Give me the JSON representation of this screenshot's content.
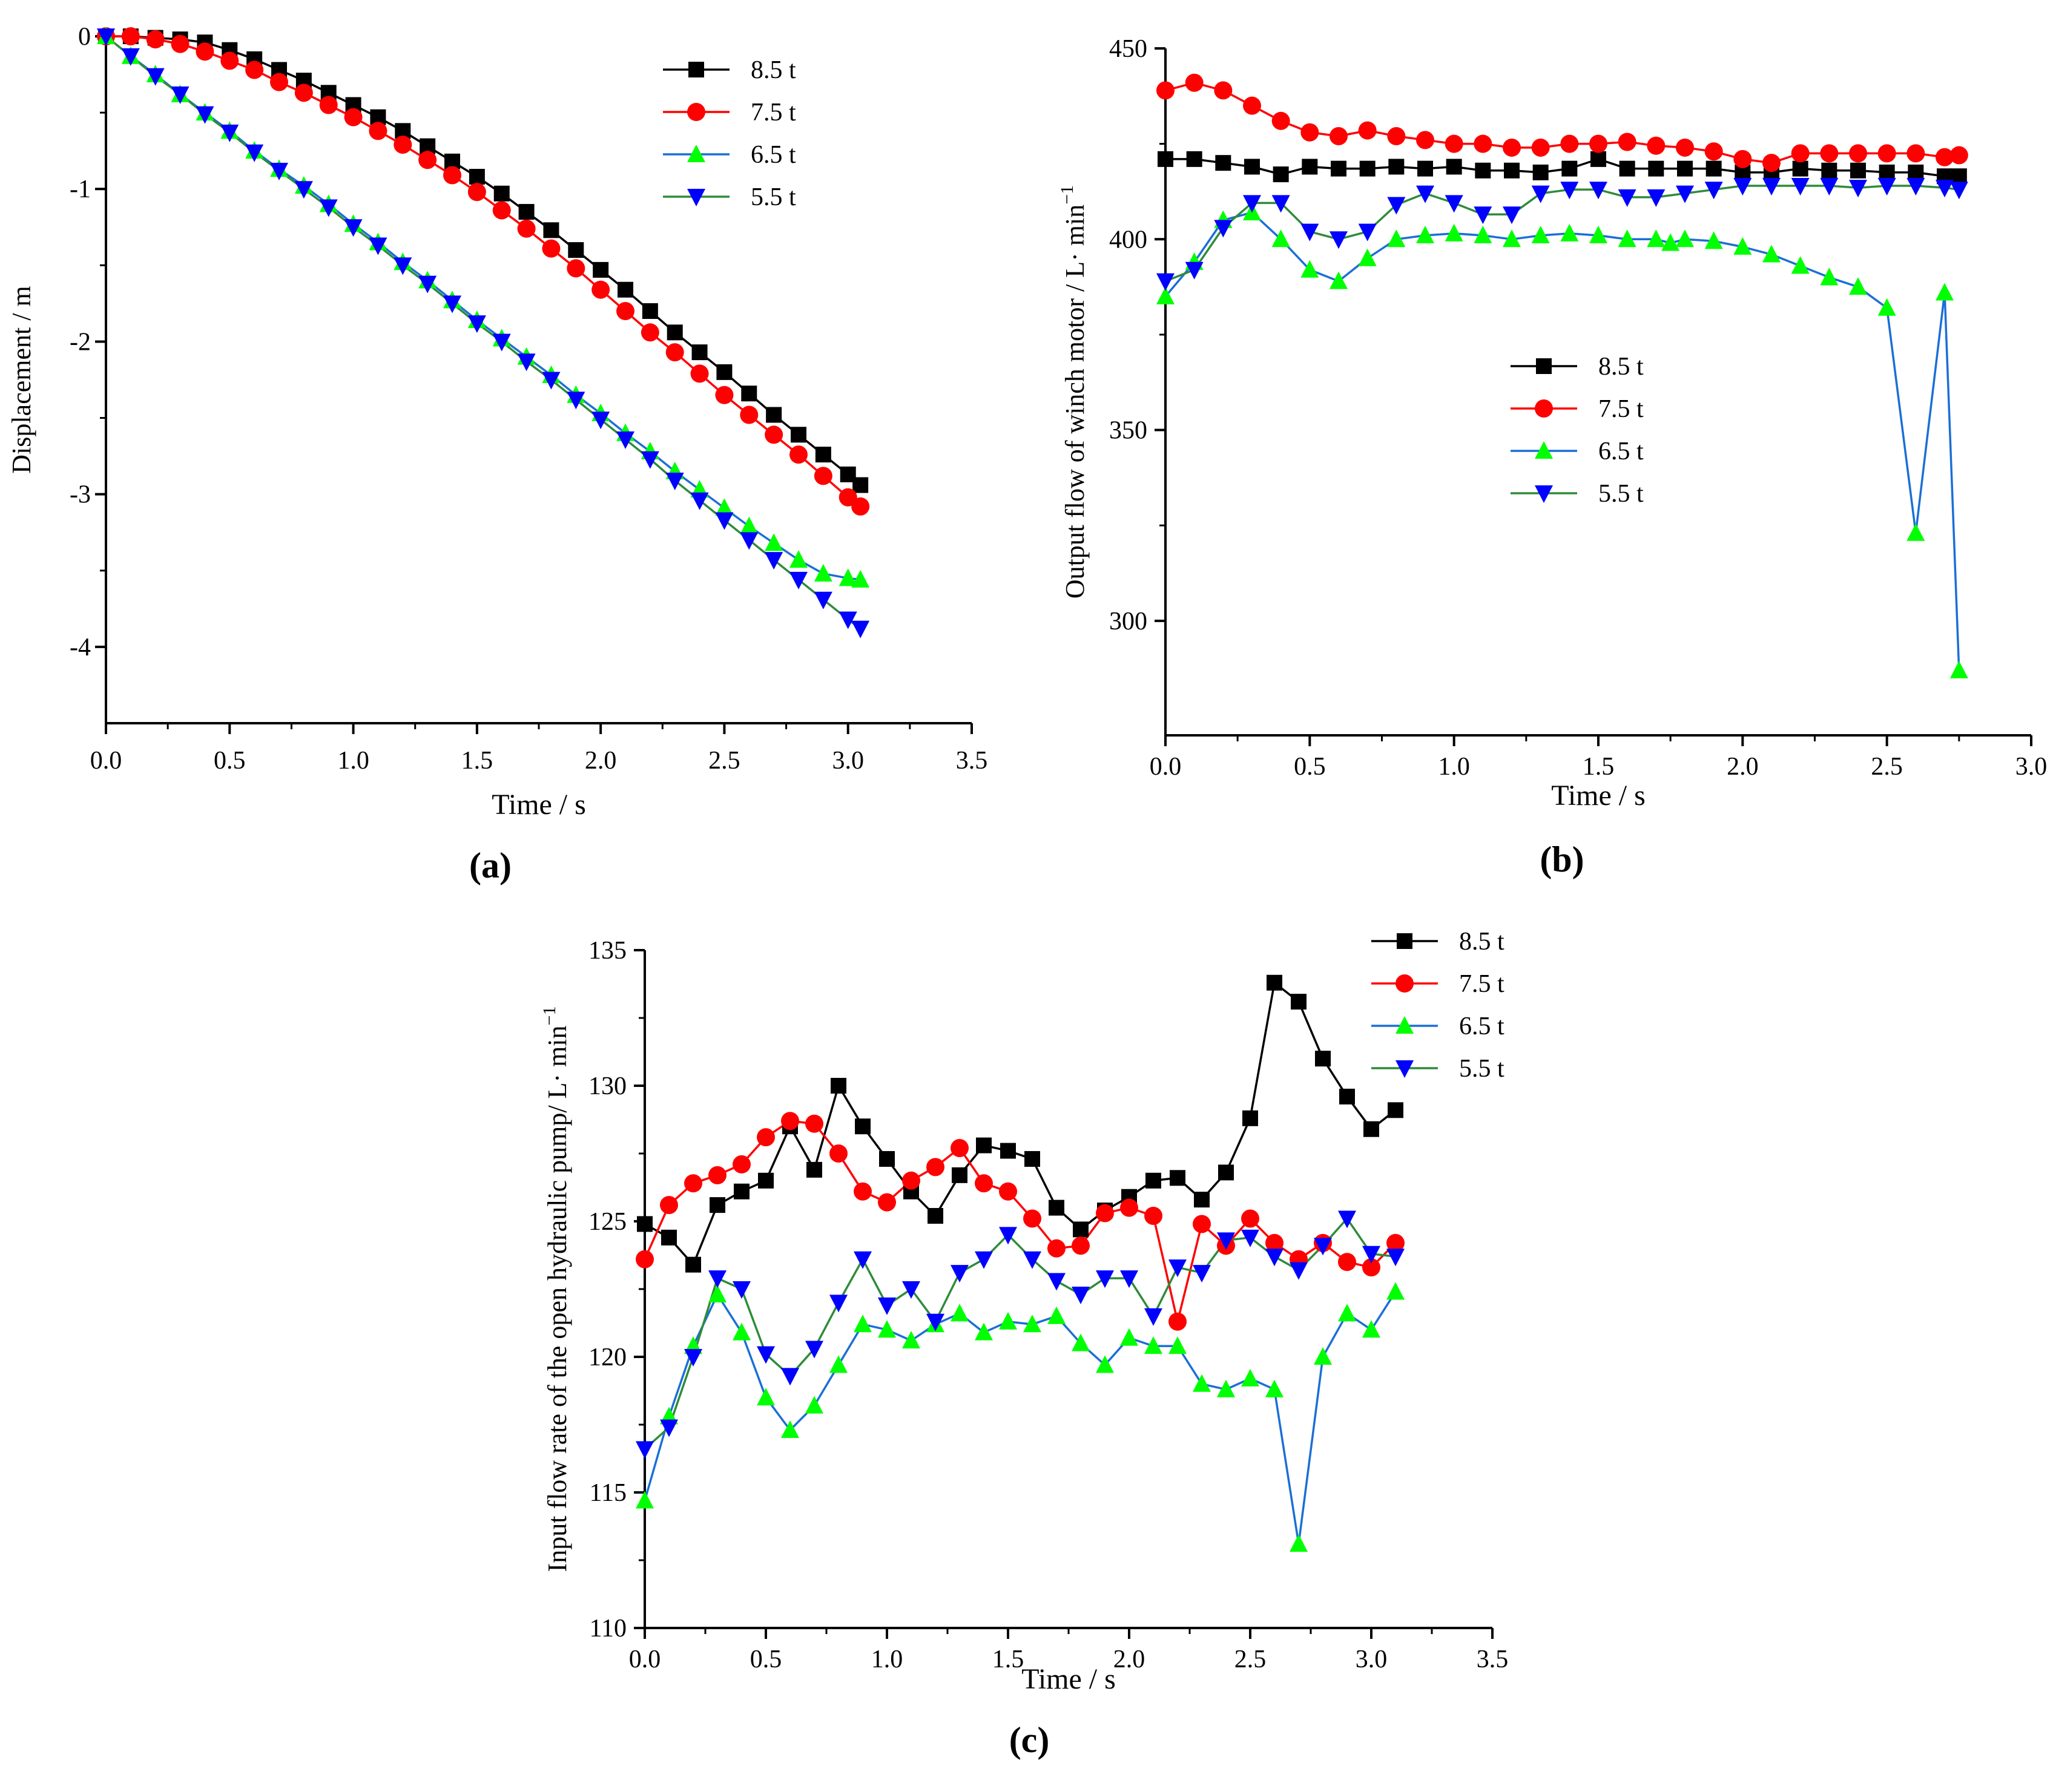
{
  "figure": {
    "panel_labels": [
      "(a)",
      "(b)",
      "(c)"
    ]
  },
  "colors": {
    "8.5 t": "#000000",
    "7.5 t": "#ff0000",
    "6.5 t": "#00ff00",
    "5.5 t": "#0000ff",
    "line_6.5 t": "#1a6fd6",
    "line_5.5 t": "#2e8b3a"
  },
  "chart_data": [
    {
      "id": "a",
      "type": "line",
      "panel_label": "(a)",
      "title": "",
      "xlabel": "Time / s",
      "ylabel": "Displacement / m",
      "xlim": [
        0.0,
        3.5
      ],
      "ylim": [
        -4.5,
        0
      ],
      "xticks": [
        0.0,
        0.5,
        1.0,
        1.5,
        2.0,
        2.5,
        3.0,
        3.5
      ],
      "xtick_labels": [
        "0.0",
        "0.5",
        "1.0",
        "1.5",
        "2.0",
        "2.5",
        "3.0",
        "3.5"
      ],
      "yticks": [
        0,
        -1,
        -2,
        -3,
        -4
      ],
      "ytick_labels": [
        "0",
        "-1",
        "-2",
        "-3",
        "-4"
      ],
      "legend": "top-right",
      "series": [
        {
          "name": "8.5 t",
          "marker": "square",
          "x": [
            0.0,
            0.1,
            0.2,
            0.3,
            0.4,
            0.5,
            0.6,
            0.7,
            0.8,
            0.9,
            1.0,
            1.1,
            1.2,
            1.3,
            1.4,
            1.5,
            1.6,
            1.7,
            1.8,
            1.9,
            2.0,
            2.1,
            2.2,
            2.3,
            2.4,
            2.5,
            2.6,
            2.7,
            2.8,
            2.9,
            3.0,
            3.05
          ],
          "y": [
            0,
            0,
            -0.01,
            -0.02,
            -0.04,
            -0.09,
            -0.15,
            -0.22,
            -0.29,
            -0.37,
            -0.45,
            -0.53,
            -0.62,
            -0.72,
            -0.82,
            -0.92,
            -1.03,
            -1.15,
            -1.27,
            -1.4,
            -1.53,
            -1.66,
            -1.8,
            -1.94,
            -2.07,
            -2.2,
            -2.34,
            -2.48,
            -2.61,
            -2.74,
            -2.87,
            -2.94
          ]
        },
        {
          "name": "7.5 t",
          "marker": "circle",
          "x": [
            0.0,
            0.1,
            0.2,
            0.3,
            0.4,
            0.5,
            0.6,
            0.7,
            0.8,
            0.9,
            1.0,
            1.1,
            1.2,
            1.3,
            1.4,
            1.5,
            1.6,
            1.7,
            1.8,
            1.9,
            2.0,
            2.1,
            2.2,
            2.3,
            2.4,
            2.5,
            2.6,
            2.7,
            2.8,
            2.9,
            3.0,
            3.05
          ],
          "y": [
            0,
            0,
            -0.02,
            -0.05,
            -0.1,
            -0.16,
            -0.22,
            -0.3,
            -0.37,
            -0.45,
            -0.53,
            -0.62,
            -0.71,
            -0.81,
            -0.91,
            -1.02,
            -1.14,
            -1.26,
            -1.39,
            -1.52,
            -1.66,
            -1.8,
            -1.94,
            -2.07,
            -2.21,
            -2.35,
            -2.48,
            -2.61,
            -2.74,
            -2.88,
            -3.02,
            -3.08
          ]
        },
        {
          "name": "6.5 t",
          "marker": "triangle-up",
          "x": [
            0.0,
            0.1,
            0.2,
            0.3,
            0.4,
            0.5,
            0.6,
            0.7,
            0.8,
            0.9,
            1.0,
            1.1,
            1.2,
            1.3,
            1.4,
            1.5,
            1.6,
            1.7,
            1.8,
            1.9,
            2.0,
            2.1,
            2.2,
            2.3,
            2.4,
            2.5,
            2.6,
            2.7,
            2.8,
            2.9,
            3.0,
            3.05
          ],
          "y": [
            0,
            -0.13,
            -0.25,
            -0.38,
            -0.5,
            -0.62,
            -0.75,
            -0.87,
            -0.98,
            -1.1,
            -1.23,
            -1.35,
            -1.48,
            -1.6,
            -1.73,
            -1.86,
            -1.98,
            -2.1,
            -2.22,
            -2.35,
            -2.47,
            -2.6,
            -2.72,
            -2.85,
            -2.97,
            -3.09,
            -3.21,
            -3.32,
            -3.43,
            -3.52,
            -3.55,
            -3.56
          ]
        },
        {
          "name": "5.5 t",
          "marker": "triangle-down",
          "x": [
            0.0,
            0.1,
            0.2,
            0.3,
            0.4,
            0.5,
            0.6,
            0.7,
            0.8,
            0.9,
            1.0,
            1.1,
            1.2,
            1.3,
            1.4,
            1.5,
            1.6,
            1.7,
            1.8,
            1.9,
            2.0,
            2.1,
            2.2,
            2.3,
            2.4,
            2.5,
            2.6,
            2.7,
            2.8,
            2.9,
            3.0,
            3.05
          ],
          "y": [
            0,
            -0.13,
            -0.26,
            -0.38,
            -0.51,
            -0.63,
            -0.76,
            -0.88,
            -1.0,
            -1.12,
            -1.25,
            -1.37,
            -1.5,
            -1.62,
            -1.75,
            -1.88,
            -2.0,
            -2.13,
            -2.25,
            -2.38,
            -2.51,
            -2.64,
            -2.77,
            -2.91,
            -3.04,
            -3.17,
            -3.3,
            -3.43,
            -3.56,
            -3.69,
            -3.82,
            -3.88
          ]
        }
      ]
    },
    {
      "id": "b",
      "type": "line",
      "panel_label": "(b)",
      "title": "",
      "xlabel": "Time / s",
      "ylabel": "Output flow of winch motor / L· min",
      "ylabel_superscript": "−1",
      "xlim": [
        0.0,
        3.0
      ],
      "ylim": [
        270,
        450
      ],
      "xticks": [
        0.0,
        0.5,
        1.0,
        1.5,
        2.0,
        2.5,
        3.0
      ],
      "xtick_labels": [
        "0.0",
        "0.5",
        "1.0",
        "1.5",
        "2.0",
        "2.5",
        "3.0"
      ],
      "yticks": [
        300,
        350,
        400,
        450
      ],
      "ytick_labels": [
        "300",
        "350",
        "400",
        "450"
      ],
      "legend": "center",
      "series": [
        {
          "name": "8.5 t",
          "marker": "square",
          "x": [
            0.0,
            0.1,
            0.2,
            0.3,
            0.4,
            0.5,
            0.6,
            0.7,
            0.8,
            0.9,
            1.0,
            1.1,
            1.2,
            1.3,
            1.4,
            1.5,
            1.6,
            1.7,
            1.8,
            1.9,
            2.0,
            2.1,
            2.2,
            2.3,
            2.4,
            2.5,
            2.6,
            2.7,
            2.75
          ],
          "y": [
            421,
            421,
            420,
            419,
            417,
            419,
            418.5,
            418.5,
            419,
            418.5,
            419,
            418,
            418,
            417.5,
            418.5,
            421,
            418.5,
            418.5,
            418.5,
            418.5,
            417.5,
            417.5,
            418.5,
            418,
            418,
            417.5,
            417.5,
            416.5,
            416.5
          ]
        },
        {
          "name": "7.5 t",
          "marker": "circle",
          "x": [
            0.0,
            0.1,
            0.2,
            0.3,
            0.4,
            0.5,
            0.6,
            0.7,
            0.8,
            0.9,
            1.0,
            1.1,
            1.2,
            1.3,
            1.4,
            1.5,
            1.6,
            1.7,
            1.8,
            1.9,
            2.0,
            2.1,
            2.2,
            2.3,
            2.4,
            2.5,
            2.6,
            2.7,
            2.75
          ],
          "y": [
            439,
            441,
            439,
            435,
            431,
            428,
            427,
            428.5,
            427,
            426,
            425,
            425,
            424,
            424,
            425,
            425,
            425.5,
            424.5,
            424,
            423,
            421,
            420,
            422.5,
            422.5,
            422.5,
            422.5,
            422.5,
            421.5,
            422
          ]
        },
        {
          "name": "6.5 t",
          "marker": "triangle-up",
          "x": [
            0.0,
            0.1,
            0.2,
            0.3,
            0.4,
            0.5,
            0.6,
            0.7,
            0.8,
            0.9,
            1.0,
            1.1,
            1.2,
            1.3,
            1.4,
            1.5,
            1.6,
            1.7,
            1.75,
            1.8,
            1.9,
            2.0,
            2.1,
            2.2,
            2.3,
            2.4,
            2.5,
            2.6,
            2.7,
            2.75
          ],
          "y": [
            385,
            394,
            405,
            407,
            400,
            392,
            389,
            395,
            400,
            401,
            401.5,
            401,
            400,
            401,
            401.5,
            401,
            400,
            400,
            399,
            400,
            399.5,
            398,
            396,
            393,
            390,
            387.5,
            382,
            323,
            386,
            287
          ]
        },
        {
          "name": "5.5 t",
          "marker": "triangle-down",
          "x": [
            0.0,
            0.1,
            0.2,
            0.3,
            0.4,
            0.5,
            0.6,
            0.7,
            0.8,
            0.9,
            1.0,
            1.1,
            1.2,
            1.3,
            1.4,
            1.5,
            1.6,
            1.7,
            1.8,
            1.9,
            2.0,
            2.1,
            2.2,
            2.3,
            2.4,
            2.5,
            2.6,
            2.7,
            2.75
          ],
          "y": [
            389,
            392,
            403,
            409.5,
            409.5,
            402,
            400,
            402,
            409,
            412,
            409.5,
            406.5,
            406.5,
            412,
            413,
            413,
            411,
            411,
            412,
            413,
            414,
            414,
            414,
            414,
            413.5,
            414,
            414,
            413.5,
            413
          ]
        }
      ]
    },
    {
      "id": "c",
      "type": "line",
      "panel_label": "(c)",
      "title": "",
      "xlabel": "Time / s",
      "ylabel": "Input flow rate of the open hydraulic pump/ L· min",
      "ylabel_superscript": "−1",
      "xlim": [
        0.0,
        3.5
      ],
      "ylim": [
        110,
        135
      ],
      "xticks": [
        0.0,
        0.5,
        1.0,
        1.5,
        2.0,
        2.5,
        3.0,
        3.5
      ],
      "xtick_labels": [
        "0.0",
        "0.5",
        "1.0",
        "1.5",
        "2.0",
        "2.5",
        "3.0",
        "3.5"
      ],
      "yticks": [
        110,
        115,
        120,
        125,
        130,
        135
      ],
      "ytick_labels": [
        "110",
        "115",
        "120",
        "125",
        "130",
        "135"
      ],
      "legend": "top-right",
      "series": [
        {
          "name": "8.5 t",
          "marker": "square",
          "x": [
            0.0,
            0.1,
            0.2,
            0.3,
            0.4,
            0.5,
            0.6,
            0.7,
            0.8,
            0.9,
            1.0,
            1.1,
            1.2,
            1.3,
            1.4,
            1.5,
            1.6,
            1.7,
            1.8,
            1.9,
            2.0,
            2.1,
            2.2,
            2.3,
            2.4,
            2.5,
            2.6,
            2.7,
            2.8,
            2.9,
            3.0,
            3.1
          ],
          "y": [
            124.9,
            124.4,
            123.4,
            125.6,
            126.1,
            126.5,
            128.5,
            126.9,
            130,
            128.5,
            127.3,
            126.1,
            125.2,
            126.7,
            127.8,
            127.6,
            127.3,
            125.5,
            124.7,
            125.4,
            125.9,
            126.5,
            126.6,
            125.8,
            126.8,
            128.8,
            133.8,
            133.1,
            131,
            129.6,
            128.4,
            129.1
          ]
        },
        {
          "name": "7.5 t",
          "marker": "circle",
          "x": [
            0.0,
            0.1,
            0.2,
            0.3,
            0.4,
            0.5,
            0.6,
            0.7,
            0.8,
            0.9,
            1.0,
            1.1,
            1.2,
            1.3,
            1.4,
            1.5,
            1.6,
            1.7,
            1.8,
            1.9,
            2.0,
            2.1,
            2.2,
            2.3,
            2.4,
            2.5,
            2.6,
            2.7,
            2.8,
            2.9,
            3.0,
            3.1
          ],
          "y": [
            123.6,
            125.6,
            126.4,
            126.7,
            127.1,
            128.1,
            128.7,
            128.6,
            127.5,
            126.1,
            125.7,
            126.5,
            127,
            127.7,
            126.4,
            126.1,
            125.1,
            124,
            124.1,
            125.3,
            125.5,
            125.2,
            121.3,
            124.9,
            124.1,
            125.1,
            124.2,
            123.6,
            124.2,
            123.5,
            123.3,
            124.2
          ]
        },
        {
          "name": "6.5 t",
          "marker": "triangle-up",
          "x": [
            0.0,
            0.1,
            0.2,
            0.3,
            0.4,
            0.5,
            0.6,
            0.7,
            0.8,
            0.9,
            1.0,
            1.1,
            1.2,
            1.3,
            1.4,
            1.5,
            1.6,
            1.7,
            1.8,
            1.9,
            2.0,
            2.1,
            2.2,
            2.3,
            2.4,
            2.5,
            2.6,
            2.7,
            2.8,
            2.9,
            3.0,
            3.1
          ],
          "y": [
            114.7,
            117.8,
            120.4,
            122.3,
            120.9,
            118.5,
            117.3,
            118.2,
            119.7,
            121.2,
            121.0,
            120.6,
            121.2,
            121.6,
            120.9,
            121.3,
            121.2,
            121.5,
            120.5,
            119.7,
            120.7,
            120.4,
            120.4,
            119,
            118.8,
            119.2,
            118.8,
            113.1,
            120,
            121.6,
            121,
            122.4
          ]
        },
        {
          "name": "5.5 t",
          "marker": "triangle-down",
          "x": [
            0.0,
            0.1,
            0.2,
            0.3,
            0.4,
            0.5,
            0.6,
            0.7,
            0.8,
            0.9,
            1.0,
            1.1,
            1.2,
            1.3,
            1.4,
            1.5,
            1.6,
            1.7,
            1.8,
            1.9,
            2.0,
            2.1,
            2.2,
            2.3,
            2.4,
            2.5,
            2.6,
            2.7,
            2.8,
            2.9,
            3.0,
            3.1
          ],
          "y": [
            116.6,
            117.4,
            120,
            122.9,
            122.5,
            120.1,
            119.3,
            120.3,
            122,
            123.6,
            121.9,
            122.5,
            121.3,
            123.1,
            123.6,
            124.5,
            123.6,
            122.8,
            122.3,
            122.9,
            122.9,
            121.5,
            123.3,
            123.1,
            124.3,
            124.4,
            123.7,
            123.2,
            124.1,
            125.1,
            123.8,
            123.7
          ]
        }
      ]
    }
  ]
}
